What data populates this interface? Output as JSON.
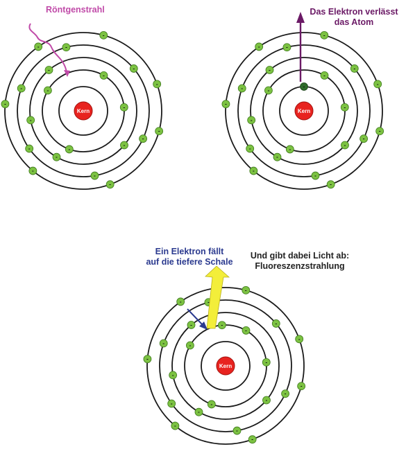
{
  "colors": {
    "shell": "#1a1a1a",
    "electron": "#7cc242",
    "electron_stroke": "#3f7a1e",
    "ejected_electron": "#2f6b2a",
    "nucleus": "#e8231f",
    "xray": "#c04aa8",
    "ejection_arrow": "#6b1a66",
    "fall_arrow": "#2b3a8f",
    "light_beam": "#f3ee3a",
    "label_purple": "#c04aa8",
    "label_dark_purple": "#6b1a66",
    "label_blue": "#2b3a8f",
    "label_black": "#222222"
  },
  "electron_sign": "-",
  "atom1": {
    "nucleus_label": "Kern",
    "xray_label": "Röntgenstrahl"
  },
  "atom2": {
    "nucleus_label": "Kern",
    "ejection_label_line1": "Das Elektron verlässt",
    "ejection_label_line2": "das Atom"
  },
  "atom3": {
    "nucleus_label": "Kern",
    "fall_label_line1": "Ein Elektron fällt",
    "fall_label_line2": "auf die tiefere Schale",
    "light_label_line1": "Und gibt dabei Licht ab:",
    "light_label_line2": "Fluoreszenzstrahlung"
  }
}
